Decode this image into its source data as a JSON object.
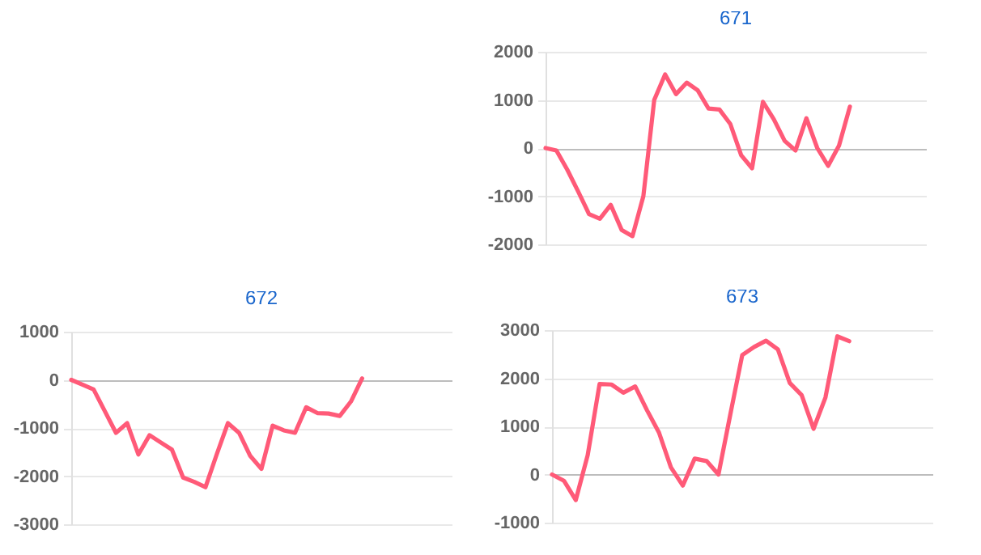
{
  "chart_data": [
    {
      "type": "line",
      "title": "671",
      "categories": [
        null,
        null,
        null,
        null,
        null,
        null,
        null,
        null,
        null,
        null,
        null,
        null,
        null,
        null,
        null,
        null,
        null,
        null,
        null,
        null,
        null,
        null,
        null,
        null,
        null,
        null,
        null,
        null,
        null,
        null,
        null,
        null,
        null,
        null,
        null,
        null
      ],
      "series": [
        {
          "color": "#ff5a78",
          "values": [
            0,
            -50,
            -450,
            -900,
            -1370,
            -1470,
            -1180,
            -1700,
            -1830,
            -1000,
            1000,
            1530,
            1120,
            1360,
            1200,
            820,
            800,
            500,
            -150,
            -420,
            960,
            600,
            150,
            -50,
            620,
            0,
            -370,
            50,
            860,
            null,
            null,
            null,
            null,
            null,
            null,
            null
          ]
        }
      ],
      "ylim": [
        -2000,
        2000
      ],
      "yticks": [
        -2000,
        -1000,
        0,
        1000,
        2000
      ],
      "grid": "y",
      "tick_labels": "y"
    },
    {
      "type": "line",
      "title": "672",
      "categories": [
        null,
        null,
        null,
        null,
        null,
        null,
        null,
        null,
        null,
        null,
        null,
        null,
        null,
        null,
        null,
        null,
        null,
        null,
        null,
        null,
        null,
        null,
        null,
        null,
        null,
        null,
        null,
        null,
        null,
        null,
        null,
        null,
        null,
        null,
        null
      ],
      "series": [
        {
          "color": "#ff5a78",
          "values": [
            0,
            -100,
            -200,
            -650,
            -1100,
            -900,
            -1550,
            -1150,
            -1300,
            -1450,
            -2030,
            -2120,
            -2230,
            -1550,
            -900,
            -1100,
            -1580,
            -1850,
            -950,
            -1050,
            -1100,
            -570,
            -690,
            -700,
            -750,
            -450,
            30,
            null,
            null,
            null,
            null,
            null,
            null,
            null,
            null
          ]
        }
      ],
      "ylim": [
        -3000,
        1000
      ],
      "yticks": [
        -3000,
        -2000,
        -1000,
        0,
        1000
      ],
      "grid": "y",
      "tick_labels": "y"
    },
    {
      "type": "line",
      "title": "673",
      "categories": [
        null,
        null,
        null,
        null,
        null,
        null,
        null,
        null,
        null,
        null,
        null,
        null,
        null,
        null,
        null,
        null,
        null,
        null,
        null,
        null,
        null,
        null,
        null,
        null,
        null,
        null,
        null,
        null,
        null,
        null,
        null,
        null,
        null
      ],
      "series": [
        {
          "color": "#ff5a78",
          "values": [
            0,
            -130,
            -530,
            400,
            1880,
            1870,
            1700,
            1830,
            1330,
            870,
            150,
            -230,
            330,
            280,
            0,
            1250,
            2480,
            2650,
            2780,
            2600,
            1900,
            1650,
            950,
            1600,
            2870,
            2770,
            null,
            null,
            null,
            null,
            null,
            null,
            null
          ]
        }
      ],
      "ylim": [
        -1000,
        3000
      ],
      "yticks": [
        -1000,
        0,
        1000,
        2000,
        3000
      ],
      "grid": "y",
      "tick_labels": "y"
    }
  ]
}
